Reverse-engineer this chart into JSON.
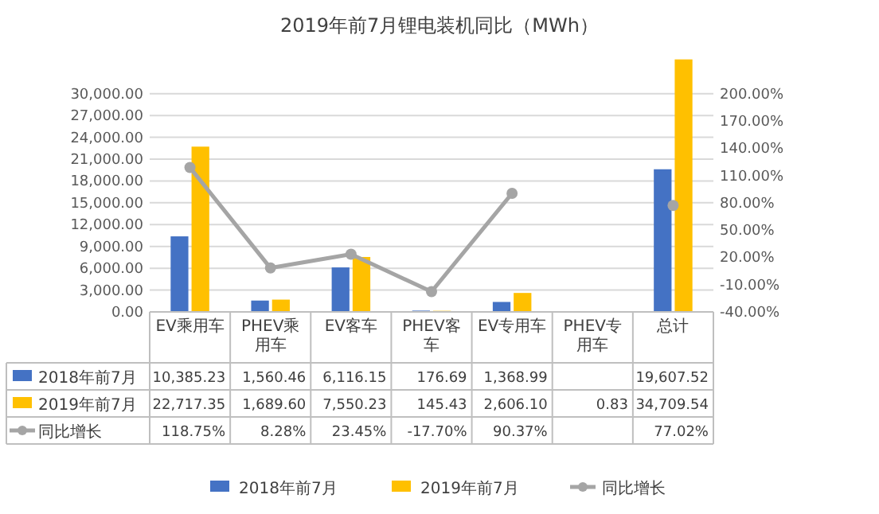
{
  "chart_data": {
    "type": "bar",
    "title": "2019年前7月锂电装机同比（MWh）",
    "categories": [
      "EV乘用车",
      "PHEV乘用车",
      "EV客车",
      "PHEV客车",
      "EV专用车",
      "PHEV专用车",
      "总计"
    ],
    "series": [
      {
        "name": "2018年前7月",
        "color": "#4472c4",
        "values": [
          10385.23,
          1560.46,
          6116.15,
          176.69,
          1368.99,
          null,
          19607.52
        ],
        "value_labels": [
          "10,385.23",
          "1,560.46",
          "6,116.15",
          "176.69",
          "1,368.99",
          null,
          "19,607.52"
        ]
      },
      {
        "name": "2019年前7月",
        "color": "#ffc000",
        "values": [
          22717.35,
          1689.6,
          7550.23,
          145.43,
          2606.1,
          0.83,
          34709.54
        ],
        "value_labels": [
          "22,717.35",
          "1,689.60",
          "7,550.23",
          "145.43",
          "2,606.10",
          "0.83",
          "34,709.54"
        ]
      },
      {
        "name": "同比增长",
        "type": "line",
        "axis": "y2",
        "color": "#a5a5a5",
        "values": [
          118.75,
          8.28,
          23.45,
          -17.7,
          90.37,
          null,
          77.02
        ],
        "value_labels": [
          "118.75%",
          "8.28%",
          "23.45%",
          "-17.70%",
          "90.37%",
          null,
          "77.02%"
        ]
      }
    ],
    "ylim": [
      0,
      35000
    ],
    "yticks": [
      {
        "value": 0,
        "label": "0.00"
      },
      {
        "value": 3000,
        "label": "3,000.00"
      },
      {
        "value": 6000,
        "label": "6,000.00"
      },
      {
        "value": 9000,
        "label": "9,000.00"
      },
      {
        "value": 12000,
        "label": "12,000.00"
      },
      {
        "value": 15000,
        "label": "15,000.00"
      },
      {
        "value": 18000,
        "label": "18,000.00"
      },
      {
        "value": 21000,
        "label": "21,000.00"
      },
      {
        "value": 24000,
        "label": "24,000.00"
      },
      {
        "value": 27000,
        "label": "27,000.00"
      },
      {
        "value": 30000,
        "label": "30,000.00"
      }
    ],
    "y2lim": [
      -40,
      240
    ],
    "y2ticks": [
      {
        "value": -40,
        "label": "-40.00%"
      },
      {
        "value": -10,
        "label": "-10.00%"
      },
      {
        "value": 20,
        "label": "20.00%"
      },
      {
        "value": 50,
        "label": "50.00%"
      },
      {
        "value": 80,
        "label": "80.00%"
      },
      {
        "value": 110,
        "label": "110.00%"
      },
      {
        "value": 140,
        "label": "140.00%"
      },
      {
        "value": 170,
        "label": "170.00%"
      },
      {
        "value": 200,
        "label": "200.00%"
      }
    ],
    "grid": "y",
    "legend": "bottom",
    "marker": "circle"
  }
}
